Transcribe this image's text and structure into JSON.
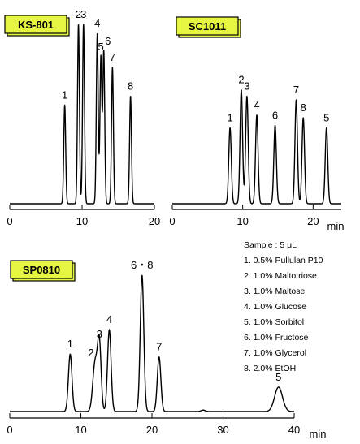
{
  "chart_data": [
    {
      "type": "line",
      "panel": "KS-801",
      "column_label": "KS-801",
      "x_ticks": [
        "0",
        "10",
        "20"
      ],
      "xlim": [
        0,
        20
      ],
      "x_unit": "",
      "peaks": [
        {
          "label": "1",
          "rt": 7.6,
          "height": 0.55
        },
        {
          "label": "2",
          "rt": 9.5,
          "height": 1.0
        },
        {
          "label": "3",
          "rt": 10.2,
          "height": 1.0
        },
        {
          "label": "4",
          "rt": 12.1,
          "height": 0.95
        },
        {
          "label": "5",
          "rt": 12.6,
          "height": 0.82
        },
        {
          "label": "6",
          "rt": 13.0,
          "height": 0.85
        },
        {
          "label": "7",
          "rt": 14.2,
          "height": 0.76
        },
        {
          "label": "8",
          "rt": 16.7,
          "height": 0.6
        }
      ]
    },
    {
      "type": "line",
      "panel": "SC1011",
      "column_label": "SC1011",
      "x_ticks": [
        "0",
        "10",
        "20"
      ],
      "xlim": [
        0,
        24
      ],
      "x_unit": "min",
      "peaks": [
        {
          "label": "1",
          "rt": 8.2,
          "height": 0.6
        },
        {
          "label": "2",
          "rt": 9.8,
          "height": 0.9
        },
        {
          "label": "3",
          "rt": 10.6,
          "height": 0.85
        },
        {
          "label": "4",
          "rt": 12.0,
          "height": 0.7
        },
        {
          "label": "6",
          "rt": 14.6,
          "height": 0.62
        },
        {
          "label": "7",
          "rt": 17.6,
          "height": 0.82
        },
        {
          "label": "8",
          "rt": 18.6,
          "height": 0.68
        },
        {
          "label": "5",
          "rt": 21.9,
          "height": 0.6
        }
      ]
    },
    {
      "type": "line",
      "panel": "SP0810",
      "column_label": "SP0810",
      "x_ticks": [
        "0",
        "10",
        "20",
        "30",
        "40"
      ],
      "xlim": [
        0,
        40
      ],
      "x_unit": "min",
      "peaks": [
        {
          "label": "1",
          "rt": 8.5,
          "height": 0.4
        },
        {
          "label": "2",
          "rt": 12.0,
          "height": 0.34
        },
        {
          "label": "3",
          "rt": 12.6,
          "height": 0.47
        },
        {
          "label": "4",
          "rt": 14.0,
          "height": 0.57
        },
        {
          "label": "6・8",
          "rt": 18.6,
          "height": 0.95
        },
        {
          "label": "7",
          "rt": 21.0,
          "height": 0.38
        },
        {
          "label": "5",
          "rt": 37.8,
          "height": 0.17
        }
      ]
    }
  ],
  "legend": {
    "title": "Sample : 5 μL",
    "items": [
      "1. 0.5% Pullulan P10",
      "2. 1.0% Maltotriose",
      "3. 1.0% Maltose",
      "4. 1.0% Glucose",
      "5. 1.0% Sorbitol",
      "6. 1.0% Fructose",
      "7. 1.0% Glycerol",
      "8. 2.0% EtOH"
    ]
  },
  "colors": {
    "label_fill": "#e6f542",
    "trace": "#000000"
  }
}
